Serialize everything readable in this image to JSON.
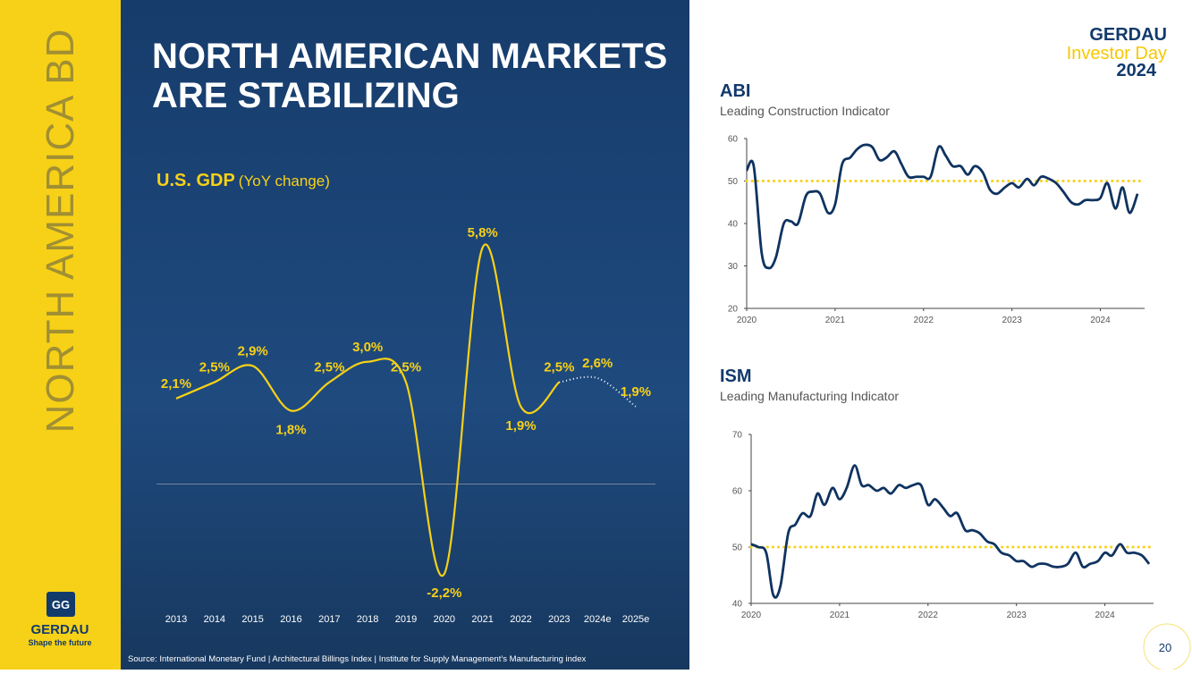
{
  "side_label": "NORTH AMERICA BD",
  "title": [
    "NORTH AMERICAN MARKETS",
    "ARE STABILIZING"
  ],
  "logo": {
    "name": "GERDAU",
    "tagline": "Shape the future"
  },
  "event": {
    "brand": "GERDAU",
    "name": "Investor Day",
    "year": "2024"
  },
  "source": "Source: International Monetary Fund | Architectural Billings Index |  Institute for Supply Management’s Manufacturing index",
  "page_number": "20",
  "chart_data": [
    {
      "type": "line",
      "title": "U.S. GDP",
      "subtitle": "(YoY change)",
      "color": "#f7d117",
      "categories": [
        "2013",
        "2014",
        "2015",
        "2016",
        "2017",
        "2018",
        "2019",
        "2020",
        "2021",
        "2022",
        "2023",
        "2024e",
        "2025e"
      ],
      "values": [
        2.1,
        2.5,
        2.9,
        1.8,
        2.5,
        3.0,
        2.5,
        -2.2,
        5.8,
        1.9,
        2.5,
        2.6,
        1.9
      ],
      "value_labels": [
        "2,1%",
        "2,5%",
        "2,9%",
        "1,8%",
        "2,5%",
        "3,0%",
        "2,5%",
        "-2,2%",
        "5,8%",
        "1,9%",
        "2,5%",
        "2,6%",
        "1,9%"
      ]
    },
    {
      "type": "line",
      "title": "ABI",
      "subtitle": "Leading Construction Indicator",
      "color": "#0f3360",
      "threshold": 50,
      "threshold_color": "#f7d117",
      "xlim": [
        2020,
        2024.5
      ],
      "xticks": [
        2020,
        2021,
        2022,
        2023,
        2024
      ],
      "ylim": [
        20,
        60
      ],
      "yticks": [
        20,
        30,
        40,
        50,
        60
      ],
      "x": [
        2020,
        2020.08,
        2020.17,
        2020.25,
        2020.33,
        2020.42,
        2020.5,
        2020.58,
        2020.67,
        2020.75,
        2020.83,
        2020.92,
        2021,
        2021.08,
        2021.17,
        2021.25,
        2021.33,
        2021.42,
        2021.5,
        2021.58,
        2021.67,
        2021.75,
        2021.83,
        2021.92,
        2022,
        2022.08,
        2022.17,
        2022.25,
        2022.33,
        2022.42,
        2022.5,
        2022.58,
        2022.67,
        2022.75,
        2022.83,
        2022.92,
        2023,
        2023.08,
        2023.17,
        2023.25,
        2023.33,
        2023.42,
        2023.5,
        2023.58,
        2023.67,
        2023.75,
        2023.83,
        2023.92,
        2024,
        2024.08,
        2024.17,
        2024.25,
        2024.33,
        2024.42
      ],
      "values": [
        52.5,
        53.5,
        33,
        29.5,
        32,
        40,
        40.5,
        40,
        46.5,
        47.5,
        47,
        42.5,
        44.5,
        54,
        55.5,
        57.5,
        58.5,
        58,
        55,
        55.5,
        57,
        54,
        51,
        51,
        51,
        51,
        58,
        56,
        53.5,
        53.5,
        51.5,
        53.5,
        52,
        48,
        47,
        48.5,
        49.5,
        48.5,
        50.5,
        49,
        51,
        50.5,
        49.5,
        47.5,
        45,
        44.5,
        45.5,
        45.5,
        46,
        49.5,
        43.5,
        48.5,
        42.5,
        47
      ]
    },
    {
      "type": "line",
      "title": "ISM",
      "subtitle": "Leading Manufacturing Indicator",
      "color": "#0f3360",
      "threshold": 50,
      "threshold_color": "#f7d117",
      "xlim": [
        2020,
        2024.55
      ],
      "xticks": [
        2020,
        2021,
        2022,
        2023,
        2024
      ],
      "ylim": [
        40,
        70
      ],
      "yticks": [
        40,
        50,
        60,
        70
      ],
      "x": [
        2020,
        2020.08,
        2020.17,
        2020.25,
        2020.33,
        2020.42,
        2020.5,
        2020.58,
        2020.67,
        2020.75,
        2020.83,
        2020.92,
        2021,
        2021.08,
        2021.17,
        2021.25,
        2021.33,
        2021.42,
        2021.5,
        2021.58,
        2021.67,
        2021.75,
        2021.83,
        2021.92,
        2022,
        2022.08,
        2022.17,
        2022.25,
        2022.33,
        2022.42,
        2022.5,
        2022.58,
        2022.67,
        2022.75,
        2022.83,
        2022.92,
        2023,
        2023.08,
        2023.17,
        2023.25,
        2023.33,
        2023.42,
        2023.5,
        2023.58,
        2023.67,
        2023.75,
        2023.83,
        2023.92,
        2024,
        2024.08,
        2024.17,
        2024.25,
        2024.33,
        2024.42,
        2024.5
      ],
      "values": [
        50.5,
        50,
        49,
        41.5,
        43,
        52.5,
        54,
        56,
        55.5,
        59.5,
        57.5,
        60.5,
        58.5,
        60.5,
        64.5,
        61,
        61,
        60,
        60.5,
        59.5,
        61,
        60.5,
        61,
        61,
        57.5,
        58.5,
        57,
        55.5,
        56,
        53,
        53,
        52.5,
        51,
        50.5,
        49,
        48.5,
        47.5,
        47.5,
        46.5,
        47,
        47,
        46.5,
        46.5,
        47,
        49,
        46.5,
        47,
        47.5,
        49,
        48.5,
        50.5,
        49,
        49,
        48.5,
        47
      ]
    }
  ]
}
